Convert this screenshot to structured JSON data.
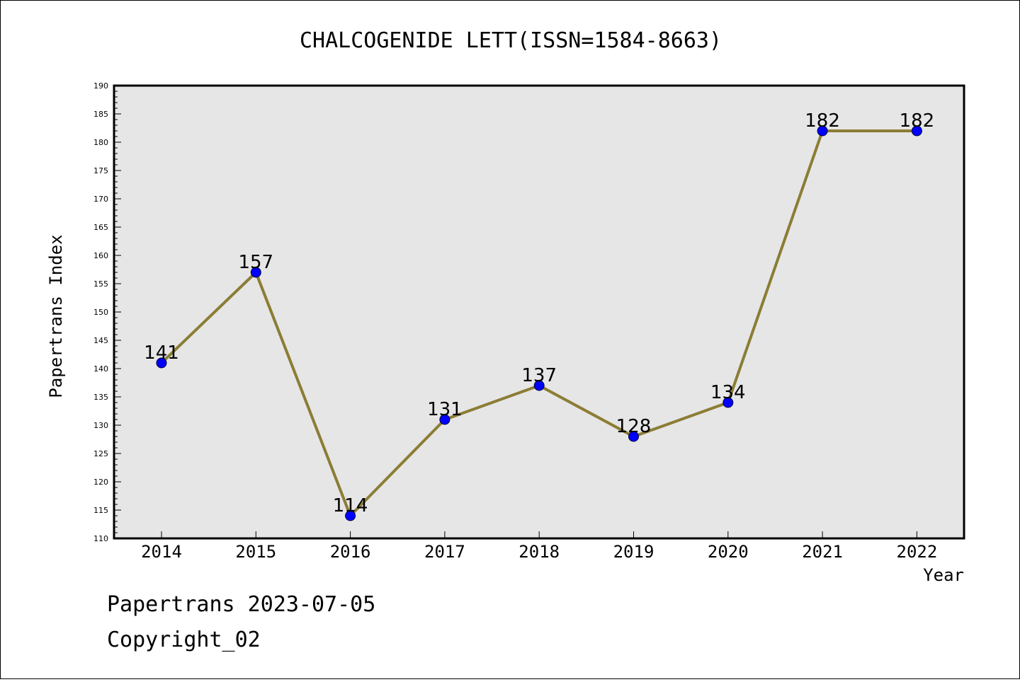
{
  "footer": {
    "date_text": "Papertrans 2023-07-05",
    "copyright_text": "Copyright_02"
  },
  "chart_data": {
    "type": "line",
    "title": "CHALCOGENIDE LETT(ISSN=1584-8663)",
    "xlabel": "Year",
    "ylabel": "Papertrans Index",
    "categories": [
      "2014",
      "2015",
      "2016",
      "2017",
      "2018",
      "2019",
      "2020",
      "2021",
      "2022"
    ],
    "series": [
      {
        "values": [
          141,
          157,
          114,
          131,
          137,
          128,
          134,
          182,
          182
        ]
      }
    ],
    "ylim": [
      110,
      190
    ],
    "y_major_step": 5,
    "y_minor_step": 1,
    "grid": false,
    "data_labels": true,
    "colors": {
      "line": "#8b7d35",
      "marker_fill": "#0000ff",
      "marker_edge": "#000033",
      "plot_background": "#e6e6e6"
    }
  }
}
